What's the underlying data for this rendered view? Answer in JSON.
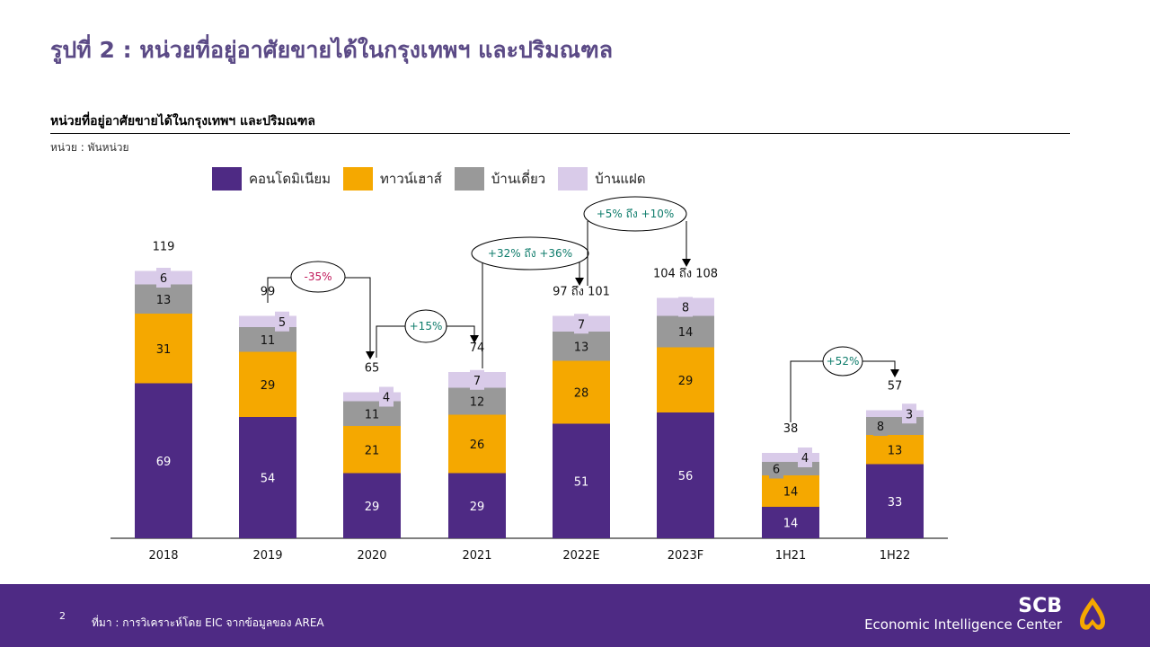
{
  "title": "รูปที่ 2 : หน่วยที่อยู่อาศัยขายได้ในกรุงเทพฯ และปริมณฑล",
  "chart_data": {
    "type": "bar",
    "stacked": true,
    "title": "หน่วยที่อยู่อาศัยขายได้ในกรุงเทพฯ และปริมณฑล",
    "unit_label": "หน่วย : พันหน่วย",
    "categories": [
      "2018",
      "2019",
      "2020",
      "2021",
      "2022E",
      "2023F",
      "1H21",
      "1H22"
    ],
    "series": [
      {
        "name": "คอนโดมิเนียม",
        "color": "#4e2a84",
        "values": [
          69,
          54,
          29,
          29,
          51,
          56,
          14,
          33
        ]
      },
      {
        "name": "ทาวน์เฮาส์",
        "color": "#f5a800",
        "values": [
          31,
          29,
          21,
          26,
          28,
          29,
          14,
          13
        ]
      },
      {
        "name": "บ้านเดี่ยว",
        "color": "#999999",
        "values": [
          13,
          11,
          11,
          12,
          13,
          14,
          6,
          8
        ]
      },
      {
        "name": "บ้านแฝด",
        "color": "#d9cbe9",
        "values": [
          6,
          5,
          4,
          7,
          7,
          8,
          4,
          3
        ]
      }
    ],
    "totals": [
      "119",
      "99",
      "65",
      "74",
      "97 ถึง 101",
      "104 ถึง 108",
      "38",
      "57"
    ],
    "annotations": [
      {
        "text": "-35%",
        "from": "2019",
        "to": "2020",
        "color": "#c0185a"
      },
      {
        "text": "+15%",
        "from": "2020",
        "to": "2021",
        "color": "#0e7c6b"
      },
      {
        "text": "+32% ถึง +36%",
        "from": "2021",
        "to": "2022E",
        "color": "#0e7c6b"
      },
      {
        "text": "+5% ถึง +10%",
        "from": "2022E",
        "to": "2023F",
        "color": "#0e7c6b"
      },
      {
        "text": "+52%",
        "from": "1H21",
        "to": "1H22",
        "color": "#0e7c6b"
      }
    ],
    "ylim": [
      0,
      120
    ],
    "legend_position": "top"
  },
  "footer": {
    "page": "2",
    "source": "ที่มา : การวิเคราะห์โดย EIC จากข้อมูลของ AREA",
    "logo_line1": "SCB",
    "logo_line2": "Economic Intelligence Center"
  }
}
